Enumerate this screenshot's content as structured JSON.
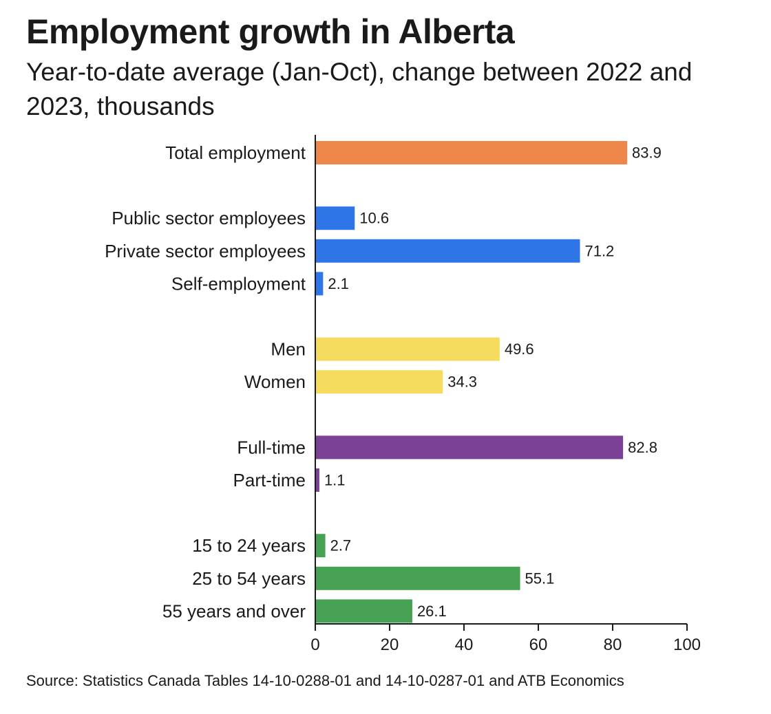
{
  "title": "Employment growth in Alberta",
  "subtitle": "Year-to-date average (Jan-Oct), change between 2022 and 2023, thousands",
  "source": "Source: Statistics Canada Tables 14-10-0288-01 and 14-10-0287-01 and ATB Economics",
  "colors": {
    "total": "#f0874a",
    "sector": "#2e75e8",
    "gender": "#f5dc5f",
    "work_type": "#7b4196",
    "age": "#46a152"
  },
  "chart_data": {
    "type": "bar",
    "orientation": "horizontal",
    "title": "Employment growth in Alberta",
    "subtitle": "Year-to-date average (Jan-Oct), change between 2022 and 2023, thousands",
    "xlim": [
      0,
      100
    ],
    "xticks": [
      0,
      20,
      40,
      60,
      80,
      100
    ],
    "grid": false,
    "legend": "none",
    "groups": [
      {
        "color_key": "total",
        "bars": [
          {
            "label": "Total employment",
            "value": 83.9
          }
        ]
      },
      {
        "color_key": "sector",
        "bars": [
          {
            "label": "Public sector employees",
            "value": 10.6
          },
          {
            "label": "Private sector employees",
            "value": 71.2
          },
          {
            "label": "Self-employment",
            "value": 2.1
          }
        ]
      },
      {
        "color_key": "gender",
        "bars": [
          {
            "label": "Men",
            "value": 49.6
          },
          {
            "label": "Women",
            "value": 34.3
          }
        ]
      },
      {
        "color_key": "work_type",
        "bars": [
          {
            "label": "Full-time",
            "value": 82.8
          },
          {
            "label": "Part-time",
            "value": 1.1
          }
        ]
      },
      {
        "color_key": "age",
        "bars": [
          {
            "label": "15 to 24 years",
            "value": 2.7
          },
          {
            "label": "25 to 54 years",
            "value": 55.1
          },
          {
            "label": "55 years and over",
            "value": 26.1
          }
        ]
      }
    ]
  }
}
